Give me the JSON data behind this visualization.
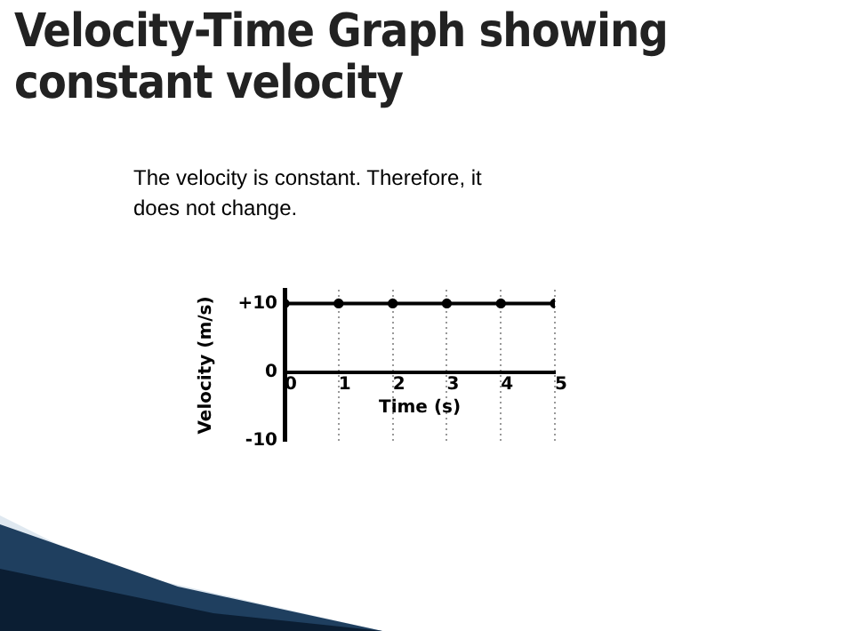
{
  "chart_data": {
    "type": "line",
    "title": "Velocity-Time Graph showing constant velocity",
    "annotations": [
      "The velocity is constant. Therefore, it does not change."
    ],
    "xlabel": "Time (s)",
    "ylabel": "Velocity (m/s)",
    "x": [
      0,
      1,
      2,
      3,
      4,
      5
    ],
    "values": [
      10,
      10,
      10,
      10,
      10,
      10
    ],
    "color": "#000000",
    "xlim": [
      0,
      5
    ],
    "xticks": [
      0,
      1,
      2,
      3,
      4,
      5
    ],
    "ylim": [
      -10,
      12
    ],
    "yticks": [
      {
        "value": -10,
        "label": "-10"
      },
      0,
      {
        "value": 10,
        "label": "+10"
      }
    ],
    "grid": "x",
    "marker": "circle",
    "line_style": "solid",
    "legend": false
  }
}
